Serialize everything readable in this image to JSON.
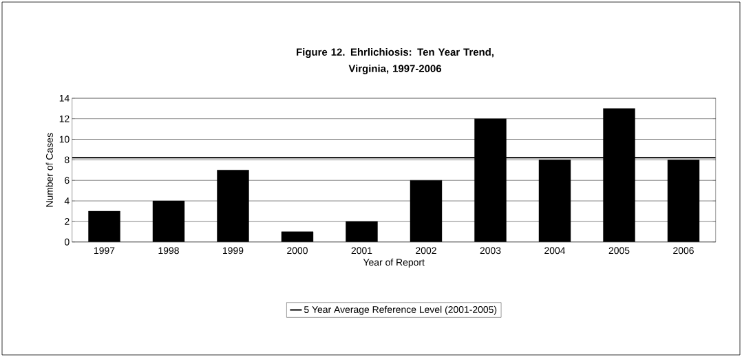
{
  "chart_data": {
    "type": "bar",
    "title": "Figure 12. Ehrlichiosis: Ten Year Trend,\nVirginia, 1997-2006",
    "xlabel": "Year of Report",
    "ylabel": "Number of Cases",
    "categories": [
      "1997",
      "1998",
      "1999",
      "2000",
      "2001",
      "2002",
      "2003",
      "2004",
      "2005",
      "2006"
    ],
    "values": [
      3,
      4,
      7,
      1,
      2,
      6,
      12,
      8,
      13,
      8
    ],
    "color": "#000000",
    "ylim": [
      0,
      14
    ],
    "yticks": [
      0,
      2,
      4,
      6,
      8,
      10,
      12,
      14
    ],
    "grid": "y",
    "legend": "bottom",
    "ref_lines": [
      {
        "axis": "y",
        "value": 8.2,
        "label": "5 Year Average Reference Level (2001-2005)",
        "color": "#000000"
      }
    ]
  }
}
